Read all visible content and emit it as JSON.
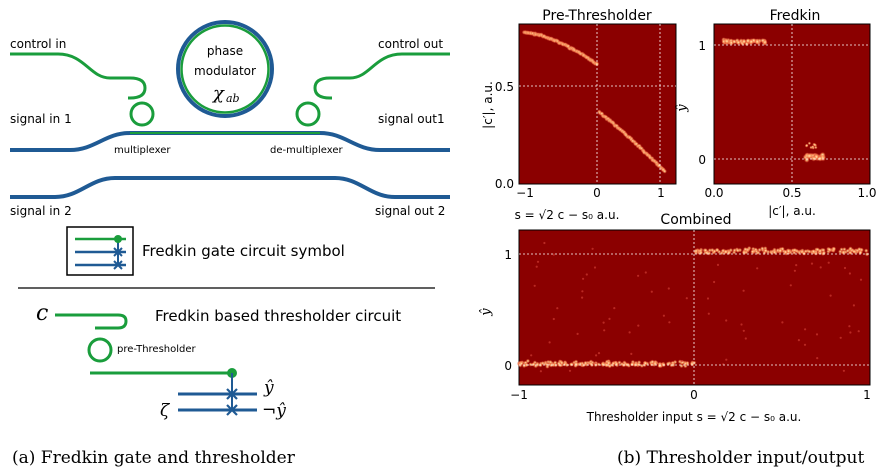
{
  "left_panel": {
    "labels": {
      "control_in": "control in",
      "control_out": "control out",
      "signal_in_1": "signal in 1",
      "signal_out_1": "signal out1",
      "signal_in_2": "signal in 2",
      "signal_out_2": "signal out 2",
      "multiplexer": "multiplexer",
      "demultiplexer": "de-multiplexer",
      "phase": "phase",
      "modulator": "modulator",
      "chi": "χ",
      "chi_sub": "ab",
      "fredkin_symbol": "Fredkin gate circuit symbol",
      "thresholder_circuit": "Fredkin based thresholder circuit",
      "pre_thresholder": "pre-Thresholder",
      "c_input": "c",
      "zeta": "ζ",
      "y_hat": "ŷ",
      "not_y_hat": "¬ŷ"
    },
    "colors": {
      "green": "#1a9d3c",
      "blue": "#1f5a94"
    }
  },
  "captions": {
    "a": "(a) Fredkin gate and thresholder",
    "b": "(b) Thresholder input/output"
  },
  "chart_data": [
    {
      "type": "heatmap",
      "title": "Pre-Thresholder",
      "xlabel": "s = √2 c − s₀ a.u.",
      "ylabel": "|c′|, a.u.",
      "xticks": [
        "−1",
        "0",
        "1"
      ],
      "yticks": [
        "0.0",
        "0.5"
      ],
      "xlim": [
        -1.2,
        1.2
      ],
      "ylim": [
        0,
        0.75
      ],
      "grid": true,
      "description_points": [
        {
          "x": -1.1,
          "y": 0.71
        },
        {
          "x": -0.5,
          "y": 0.66
        },
        {
          "x": 0.0,
          "y": 0.56
        },
        {
          "x": 0.05,
          "y": 0.34
        },
        {
          "x": 0.5,
          "y": 0.2
        },
        {
          "x": 1.0,
          "y": 0.06
        }
      ]
    },
    {
      "type": "heatmap",
      "title": "Fredkin",
      "xlabel": "|c′|, a.u.",
      "ylabel": "ŷ",
      "xticks": [
        "0.0",
        "0.5",
        "1.0"
      ],
      "yticks": [
        "0",
        "1"
      ],
      "xlim": [
        0,
        1
      ],
      "ylim": [
        -0.2,
        1.15
      ],
      "grid": true,
      "clusters": [
        {
          "x_range": [
            0.05,
            0.35
          ],
          "y": 1.0
        },
        {
          "x_range": [
            0.55,
            0.7
          ],
          "y": 0.0
        }
      ]
    },
    {
      "type": "heatmap",
      "title": "Combined",
      "xlabel": "Thresholder input s = √2 c − s₀ a.u.",
      "ylabel": "ŷ",
      "xticks": [
        "−1",
        "0",
        "1"
      ],
      "yticks": [
        "0",
        "1"
      ],
      "xlim": [
        -1,
        1
      ],
      "ylim": [
        -0.2,
        1.2
      ],
      "grid": true,
      "clusters": [
        {
          "x_range": [
            -1,
            0
          ],
          "y": 0.0
        },
        {
          "x_range": [
            0,
            1
          ],
          "y": 1.0
        }
      ]
    }
  ]
}
